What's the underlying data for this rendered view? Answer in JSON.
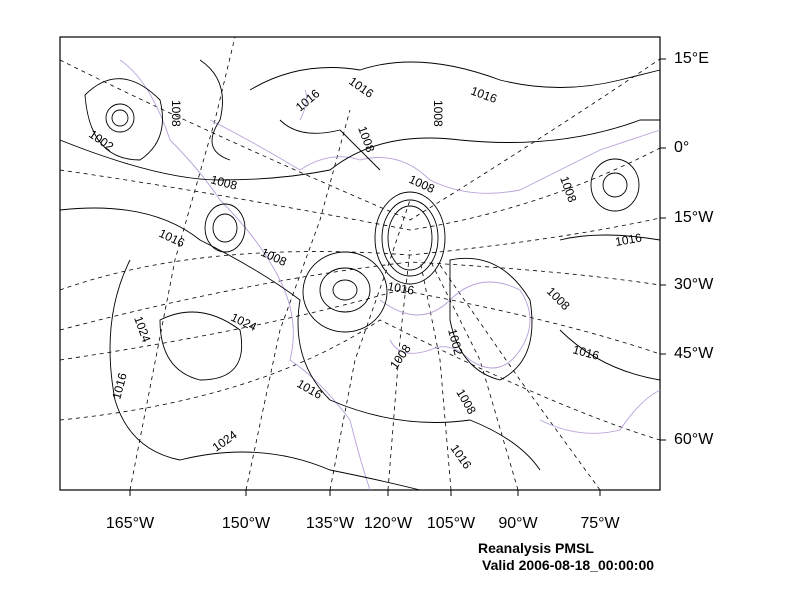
{
  "map": {
    "field": "PMSL",
    "contour_interval": 8,
    "contour_color": "#000000",
    "coastline_color": "#b8a0d8",
    "gridline_style": "dashed",
    "contour_labels": [
      "1016",
      "1016",
      "1008",
      "1002",
      "1008",
      "1016",
      "1008",
      "1008",
      "1008",
      "1008",
      "1016",
      "1008",
      "1016",
      "1016",
      "1008",
      "1024",
      "1024",
      "1002",
      "1008",
      "1016",
      "1016",
      "1016",
      "1008",
      "1024",
      "1016"
    ],
    "right_axis_labels": [
      "15°E",
      "0°",
      "15°W",
      "30°W",
      "45°W",
      "60°W"
    ],
    "bottom_axis_labels": [
      "165°W",
      "150°W",
      "135°W",
      "120°W",
      "105°W",
      "90°W",
      "75°W"
    ]
  },
  "footer": {
    "title": "Reanalysis PMSL",
    "valid": "Valid 2006-08-18_00:00:00"
  }
}
